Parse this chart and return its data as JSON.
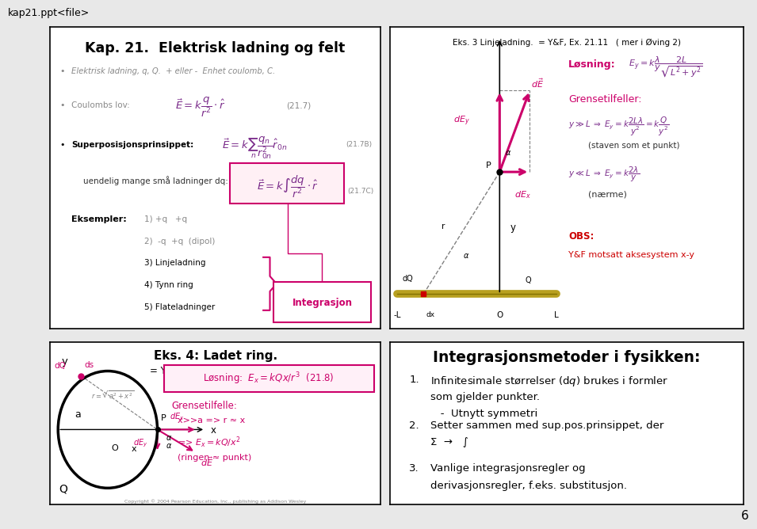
{
  "slide_title": "kap21.ppt<file>",
  "page_num": "6",
  "slide_bg": "#e8e8e8",
  "panel_bg": "#ffffff",
  "panel_border": "#000000",
  "gray": "#888888",
  "purple": "#7B2D8B",
  "magenta": "#CC006A",
  "red": "#CC0000",
  "dark": "#303030",
  "gold": "#B8A020",
  "panel1_title": "Kap. 21.  Elektrisk ladning og felt",
  "panel2_title": "Eks. 3 Linjeladning.  = Y&F, Ex. 21.11   ( mer i Øving 2)",
  "panel3_title": "Eks. 4: Ladet ring.",
  "panel3_sub": "= Y&F: Ex. 21.10  (fig. 21.2)",
  "panel4_title": "Integrasjonsmetoder i fysikken:",
  "panel4_items": [
    "Infinitesimale størrelser (d$q$) brukes i formler\nsom gjelder punkter.\n   -  Utnytt symmetri",
    "Setter sammen med sup.pos.prinsippet, der\nΣ  →   ∫",
    "Vanlige integrasjonsregler og\nderivasjonsregler, f.eks. substitusjon."
  ]
}
